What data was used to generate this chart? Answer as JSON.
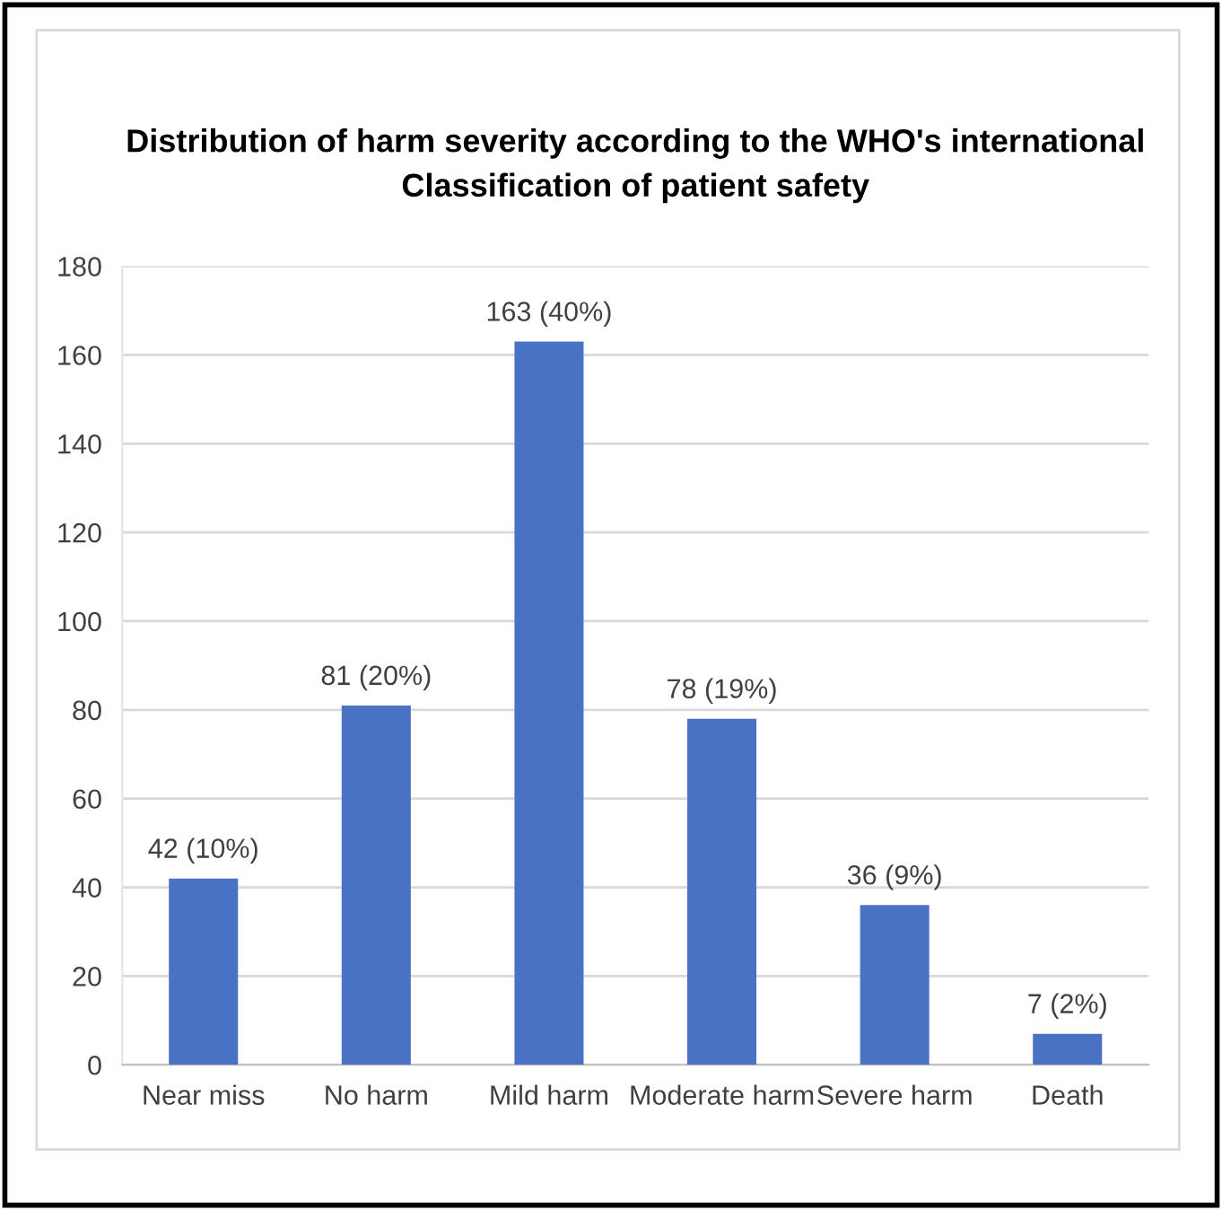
{
  "chart_data": {
    "type": "bar",
    "title": "Distribution of harm severity according to the WHO's international\nClassification of patient safety",
    "categories": [
      "Near miss",
      "No harm",
      "Mild harm",
      "Moderate harm",
      "Severe harm",
      "Death"
    ],
    "values": [
      42,
      81,
      163,
      78,
      36,
      7
    ],
    "value_labels": [
      "42 (10%)",
      "81 (20%)",
      "163 (40%)",
      "78 (19%)",
      "36 (9%)",
      "7 (2%)"
    ],
    "color": "#4a72c4",
    "ylim": [
      0,
      180
    ],
    "yticks": [
      0,
      20,
      40,
      60,
      80,
      100,
      120,
      140,
      160,
      180
    ],
    "grid": "y",
    "legend": false
  }
}
